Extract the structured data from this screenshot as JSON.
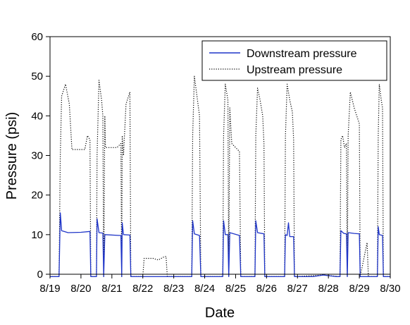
{
  "chart_data": {
    "type": "line",
    "title": "",
    "xlabel": "Date",
    "ylabel": "Pressure (psi)",
    "x_tick_labels": [
      "8/19",
      "8/20",
      "8/21",
      "8/22",
      "8/23",
      "8/24",
      "8/25",
      "8/26",
      "8/27",
      "8/28",
      "8/29",
      "8/30"
    ],
    "y_tick_labels": [
      "0",
      "10",
      "20",
      "30",
      "40",
      "50",
      "60"
    ],
    "xlim": [
      "8/19",
      "8/30"
    ],
    "ylim": [
      0,
      60
    ],
    "grid": false,
    "legend_position": "top-right",
    "legend": [
      {
        "label": "Downstream pressure",
        "color": "#1f35c8",
        "style": "solid"
      },
      {
        "label": "Upstream pressure",
        "color": "#000000",
        "style": "dotted"
      }
    ],
    "series": [
      {
        "name": "Downstream pressure",
        "color": "#1f35c8",
        "style": "solid",
        "points": [
          [
            "8/19 00:00",
            -0.6
          ],
          [
            "8/19 07:00",
            -0.6
          ],
          [
            "8/19 08:00",
            15.5
          ],
          [
            "8/19 09:00",
            11
          ],
          [
            "8/19 14:00",
            10.5
          ],
          [
            "8/20 00:00",
            10.6
          ],
          [
            "8/20 07:00",
            10.8
          ],
          [
            "8/20 07:40",
            -0.6
          ],
          [
            "8/20 12:00",
            -0.6
          ],
          [
            "8/20 12:30",
            14
          ],
          [
            "8/20 14:00",
            10.5
          ],
          [
            "8/20 17:00",
            10.4
          ],
          [
            "8/20 17:40",
            -0.6
          ],
          [
            "8/20 18:30",
            10
          ],
          [
            "8/21 06:00",
            9.8
          ],
          [
            "8/21 07:00",
            9.8
          ],
          [
            "8/21 07:40",
            -0.6
          ],
          [
            "8/21 08:00",
            13
          ],
          [
            "8/21 09:00",
            10
          ],
          [
            "8/21 14:00",
            9.9
          ],
          [
            "8/21 14:40",
            -0.6
          ],
          [
            "8/22 00:00",
            -0.6
          ],
          [
            "8/23 00:00",
            -0.6
          ],
          [
            "8/23 14:00",
            -0.6
          ],
          [
            "8/23 14:40",
            13.5
          ],
          [
            "8/23 16:00",
            10.2
          ],
          [
            "8/23 20:00",
            9.8
          ],
          [
            "8/23 21:00",
            -0.6
          ],
          [
            "8/24 00:00",
            -0.6
          ],
          [
            "8/24 14:00",
            -0.6
          ],
          [
            "8/24 14:40",
            13.5
          ],
          [
            "8/24 16:00",
            10
          ],
          [
            "8/24 18:00",
            10
          ],
          [
            "8/24 18:40",
            -0.6
          ],
          [
            "8/24 19:30",
            10.5
          ],
          [
            "8/25 03:00",
            9.8
          ],
          [
            "8/25 04:00",
            -0.6
          ],
          [
            "8/25 15:00",
            -0.6
          ],
          [
            "8/25 15:40",
            13.5
          ],
          [
            "8/25 17:00",
            10.5
          ],
          [
            "8/25 22:00",
            10.2
          ],
          [
            "8/25 22:40",
            -0.6
          ],
          [
            "8/26 14:00",
            -0.6
          ],
          [
            "8/26 14:40",
            10
          ],
          [
            "8/26 16:00",
            9.8
          ],
          [
            "8/26 17:00",
            13
          ],
          [
            "8/26 18:00",
            9.5
          ],
          [
            "8/26 21:00",
            9.5
          ],
          [
            "8/26 21:40",
            -0.6
          ],
          [
            "8/27 12:00",
            -0.6
          ],
          [
            "8/27 20:00",
            -0.2
          ],
          [
            "8/28 06:00",
            -0.6
          ],
          [
            "8/28 09:00",
            -0.6
          ],
          [
            "8/28 09:40",
            11
          ],
          [
            "8/28 12:00",
            10.3
          ],
          [
            "8/28 14:00",
            10.2
          ],
          [
            "8/28 14:40",
            -0.6
          ],
          [
            "8/28 15:20",
            10.5
          ],
          [
            "8/28 20:00",
            10.3
          ],
          [
            "8/29 00:00",
            10.2
          ],
          [
            "8/29 00:40",
            -0.6
          ],
          [
            "8/29 14:00",
            -0.6
          ],
          [
            "8/29 14:40",
            12
          ],
          [
            "8/29 15:30",
            10
          ],
          [
            "8/29 18:00",
            9.8
          ],
          [
            "8/29 18:40",
            -0.6
          ],
          [
            "8/30 00:00",
            -0.6
          ]
        ]
      },
      {
        "name": "Upstream pressure",
        "color": "#000000",
        "style": "dotted",
        "points": [
          [
            "8/19 00:00",
            -0.6
          ],
          [
            "8/19 07:00",
            -0.6
          ],
          [
            "8/19 08:00",
            30
          ],
          [
            "8/19 09:00",
            45
          ],
          [
            "8/19 12:00",
            48
          ],
          [
            "8/19 15:00",
            43
          ],
          [
            "8/19 17:00",
            31.5
          ],
          [
            "8/20 00:00",
            31.5
          ],
          [
            "8/20 03:00",
            31.5
          ],
          [
            "8/20 05:00",
            35
          ],
          [
            "8/20 07:00",
            34
          ],
          [
            "8/20 07:40",
            -0.6
          ],
          [
            "8/20 12:00",
            -0.6
          ],
          [
            "8/20 12:30",
            30
          ],
          [
            "8/20 14:00",
            49
          ],
          [
            "8/20 16:00",
            44
          ],
          [
            "8/20 17:00",
            40
          ],
          [
            "8/20 17:40",
            -0.6
          ],
          [
            "8/20 18:30",
            40
          ],
          [
            "8/20 19:00",
            32
          ],
          [
            "8/21 04:00",
            32
          ],
          [
            "8/21 07:00",
            33
          ],
          [
            "8/21 07:40",
            -0.6
          ],
          [
            "8/21 08:00",
            35
          ],
          [
            "8/21 09:00",
            30
          ],
          [
            "8/21 11:00",
            43
          ],
          [
            "8/21 14:00",
            46
          ],
          [
            "8/21 14:40",
            -0.6
          ],
          [
            "8/22 00:00",
            -0.6
          ],
          [
            "8/22 01:00",
            4
          ],
          [
            "8/22 08:00",
            4
          ],
          [
            "8/22 12:00",
            3.6
          ],
          [
            "8/22 16:00",
            4.3
          ],
          [
            "8/22 18:00",
            4.5
          ],
          [
            "8/22 19:00",
            -0.6
          ],
          [
            "8/23 14:00",
            -0.6
          ],
          [
            "8/23 14:40",
            35
          ],
          [
            "8/23 16:00",
            50
          ],
          [
            "8/23 18:00",
            45
          ],
          [
            "8/23 20:00",
            40
          ],
          [
            "8/23 21:00",
            -0.6
          ],
          [
            "8/24 14:00",
            -0.6
          ],
          [
            "8/24 14:40",
            35
          ],
          [
            "8/24 16:00",
            48
          ],
          [
            "8/24 18:00",
            44
          ],
          [
            "8/24 18:40",
            -0.6
          ],
          [
            "8/24 19:30",
            42
          ],
          [
            "8/24 21:00",
            33
          ],
          [
            "8/25 00:00",
            32
          ],
          [
            "8/25 03:00",
            31
          ],
          [
            "8/25 04:00",
            -0.6
          ],
          [
            "8/25 15:00",
            -0.6
          ],
          [
            "8/25 15:40",
            35
          ],
          [
            "8/25 17:00",
            47
          ],
          [
            "8/25 19:00",
            44
          ],
          [
            "8/25 21:00",
            40
          ],
          [
            "8/25 22:00",
            33
          ],
          [
            "8/25 22:40",
            -0.6
          ],
          [
            "8/26 14:00",
            -0.6
          ],
          [
            "8/26 14:40",
            35
          ],
          [
            "8/26 16:00",
            48
          ],
          [
            "8/26 18:00",
            44
          ],
          [
            "8/26 20:00",
            41
          ],
          [
            "8/26 21:00",
            34
          ],
          [
            "8/26 21:40",
            -0.6
          ],
          [
            "8/27 20:00",
            -0.2
          ],
          [
            "8/28 09:00",
            -0.6
          ],
          [
            "8/28 09:40",
            34
          ],
          [
            "8/28 11:00",
            35
          ],
          [
            "8/28 12:30",
            32
          ],
          [
            "8/28 14:00",
            33
          ],
          [
            "8/28 14:40",
            -0.6
          ],
          [
            "8/28 15:20",
            35
          ],
          [
            "8/28 17:00",
            46
          ],
          [
            "8/28 20:00",
            42
          ],
          [
            "8/29 00:00",
            38
          ],
          [
            "8/29 00:40",
            -0.6
          ],
          [
            "8/29 06:00",
            8
          ],
          [
            "8/29 07:00",
            -0.6
          ],
          [
            "8/29 14:00",
            -0.6
          ],
          [
            "8/29 14:40",
            35
          ],
          [
            "8/29 15:30",
            48
          ],
          [
            "8/29 17:00",
            44
          ],
          [
            "8/29 18:00",
            42
          ],
          [
            "8/29 18:40",
            -0.6
          ],
          [
            "8/30 00:00",
            -0.6
          ]
        ]
      }
    ]
  }
}
